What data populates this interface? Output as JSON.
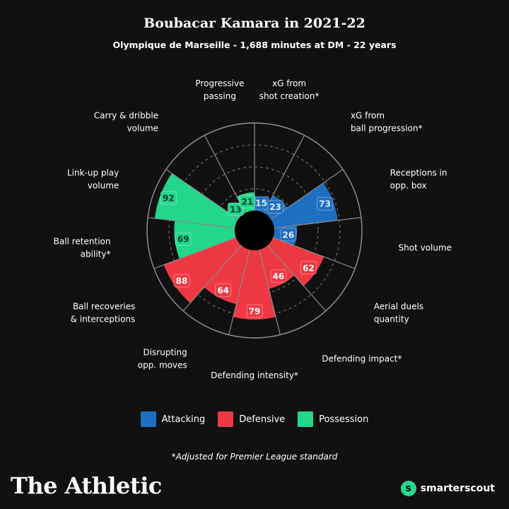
{
  "header": {
    "title": "Boubacar Kamara in 2021-22",
    "subtitle": "Olympique de Marseille - 1,688 minutes at DM - 22 years"
  },
  "colors": {
    "Attacking": "#1e6fc0",
    "Defensive": "#ee3944",
    "Possession": "#22d68b",
    "background": "#111111",
    "grid": "#8a8a8a"
  },
  "chart_data": {
    "type": "polar-bar",
    "title": "Boubacar Kamara in 2021-22",
    "subtitle": "Olympique de Marseille - 1,688 minutes at DM - 22 years",
    "rlim": [
      0,
      100
    ],
    "grid": true,
    "categories": [
      {
        "label": [
          "xG from",
          "shot creation*"
        ],
        "value": 15,
        "group": "Attacking"
      },
      {
        "label": [
          "xG from",
          "ball progression*"
        ],
        "value": 23,
        "group": "Attacking"
      },
      {
        "label": [
          "Receptions in",
          "opp. box"
        ],
        "value": 73,
        "group": "Attacking"
      },
      {
        "label": [
          "Shot volume"
        ],
        "value": 26,
        "group": "Attacking"
      },
      {
        "label": [
          "Aerial duels",
          "quantity"
        ],
        "value": 62,
        "group": "Defensive"
      },
      {
        "label": [
          "Defending impact*"
        ],
        "value": 46,
        "group": "Defensive"
      },
      {
        "label": [
          "Defending intensity*"
        ],
        "value": 79,
        "group": "Defensive"
      },
      {
        "label": [
          "Disrupting",
          "opp. moves"
        ],
        "value": 64,
        "group": "Defensive"
      },
      {
        "label": [
          "Ball recoveries",
          "& interceptions"
        ],
        "value": 88,
        "group": "Defensive"
      },
      {
        "label": [
          "Ball retention",
          "ability*"
        ],
        "value": 69,
        "group": "Possession"
      },
      {
        "label": [
          "Link-up play",
          "volume"
        ],
        "value": 92,
        "group": "Possession"
      },
      {
        "label": [
          "Carry & dribble",
          "volume"
        ],
        "value": 13,
        "group": "Possession"
      },
      {
        "label": [
          "Progressive",
          "passing"
        ],
        "value": 21,
        "group": "Possession"
      }
    ],
    "legend": {
      "position": "bottom",
      "entries": [
        "Attacking",
        "Defensive",
        "Possession"
      ]
    }
  },
  "footnote": "*Adjusted for Premier League standard",
  "branding": {
    "publisher": "The Athletic",
    "partner": "smarterscout"
  }
}
